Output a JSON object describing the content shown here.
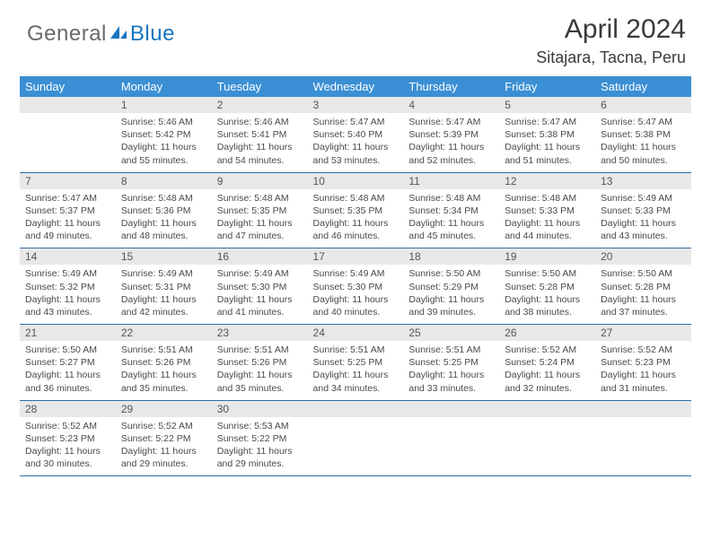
{
  "logo": {
    "text1": "General",
    "text2": "Blue",
    "icon_color": "#1976c1",
    "text1_color": "#6a6a6a"
  },
  "header": {
    "title": "April 2024",
    "location": "Sitajara, Tacna, Peru"
  },
  "colors": {
    "header_bg": "#3b8fd4",
    "header_text": "#ffffff",
    "daynum_bg": "#e8e8e8",
    "cell_border": "#2f6fa8",
    "body_text": "#4a4a4a"
  },
  "weekdays": [
    "Sunday",
    "Monday",
    "Tuesday",
    "Wednesday",
    "Thursday",
    "Friday",
    "Saturday"
  ],
  "weeks": [
    [
      null,
      {
        "n": "1",
        "sr": "5:46 AM",
        "ss": "5:42 PM",
        "dl": "11 hours and 55 minutes."
      },
      {
        "n": "2",
        "sr": "5:46 AM",
        "ss": "5:41 PM",
        "dl": "11 hours and 54 minutes."
      },
      {
        "n": "3",
        "sr": "5:47 AM",
        "ss": "5:40 PM",
        "dl": "11 hours and 53 minutes."
      },
      {
        "n": "4",
        "sr": "5:47 AM",
        "ss": "5:39 PM",
        "dl": "11 hours and 52 minutes."
      },
      {
        "n": "5",
        "sr": "5:47 AM",
        "ss": "5:38 PM",
        "dl": "11 hours and 51 minutes."
      },
      {
        "n": "6",
        "sr": "5:47 AM",
        "ss": "5:38 PM",
        "dl": "11 hours and 50 minutes."
      }
    ],
    [
      {
        "n": "7",
        "sr": "5:47 AM",
        "ss": "5:37 PM",
        "dl": "11 hours and 49 minutes."
      },
      {
        "n": "8",
        "sr": "5:48 AM",
        "ss": "5:36 PM",
        "dl": "11 hours and 48 minutes."
      },
      {
        "n": "9",
        "sr": "5:48 AM",
        "ss": "5:35 PM",
        "dl": "11 hours and 47 minutes."
      },
      {
        "n": "10",
        "sr": "5:48 AM",
        "ss": "5:35 PM",
        "dl": "11 hours and 46 minutes."
      },
      {
        "n": "11",
        "sr": "5:48 AM",
        "ss": "5:34 PM",
        "dl": "11 hours and 45 minutes."
      },
      {
        "n": "12",
        "sr": "5:48 AM",
        "ss": "5:33 PM",
        "dl": "11 hours and 44 minutes."
      },
      {
        "n": "13",
        "sr": "5:49 AM",
        "ss": "5:33 PM",
        "dl": "11 hours and 43 minutes."
      }
    ],
    [
      {
        "n": "14",
        "sr": "5:49 AM",
        "ss": "5:32 PM",
        "dl": "11 hours and 43 minutes."
      },
      {
        "n": "15",
        "sr": "5:49 AM",
        "ss": "5:31 PM",
        "dl": "11 hours and 42 minutes."
      },
      {
        "n": "16",
        "sr": "5:49 AM",
        "ss": "5:30 PM",
        "dl": "11 hours and 41 minutes."
      },
      {
        "n": "17",
        "sr": "5:49 AM",
        "ss": "5:30 PM",
        "dl": "11 hours and 40 minutes."
      },
      {
        "n": "18",
        "sr": "5:50 AM",
        "ss": "5:29 PM",
        "dl": "11 hours and 39 minutes."
      },
      {
        "n": "19",
        "sr": "5:50 AM",
        "ss": "5:28 PM",
        "dl": "11 hours and 38 minutes."
      },
      {
        "n": "20",
        "sr": "5:50 AM",
        "ss": "5:28 PM",
        "dl": "11 hours and 37 minutes."
      }
    ],
    [
      {
        "n": "21",
        "sr": "5:50 AM",
        "ss": "5:27 PM",
        "dl": "11 hours and 36 minutes."
      },
      {
        "n": "22",
        "sr": "5:51 AM",
        "ss": "5:26 PM",
        "dl": "11 hours and 35 minutes."
      },
      {
        "n": "23",
        "sr": "5:51 AM",
        "ss": "5:26 PM",
        "dl": "11 hours and 35 minutes."
      },
      {
        "n": "24",
        "sr": "5:51 AM",
        "ss": "5:25 PM",
        "dl": "11 hours and 34 minutes."
      },
      {
        "n": "25",
        "sr": "5:51 AM",
        "ss": "5:25 PM",
        "dl": "11 hours and 33 minutes."
      },
      {
        "n": "26",
        "sr": "5:52 AM",
        "ss": "5:24 PM",
        "dl": "11 hours and 32 minutes."
      },
      {
        "n": "27",
        "sr": "5:52 AM",
        "ss": "5:23 PM",
        "dl": "11 hours and 31 minutes."
      }
    ],
    [
      {
        "n": "28",
        "sr": "5:52 AM",
        "ss": "5:23 PM",
        "dl": "11 hours and 30 minutes."
      },
      {
        "n": "29",
        "sr": "5:52 AM",
        "ss": "5:22 PM",
        "dl": "11 hours and 29 minutes."
      },
      {
        "n": "30",
        "sr": "5:53 AM",
        "ss": "5:22 PM",
        "dl": "11 hours and 29 minutes."
      },
      null,
      null,
      null,
      null
    ]
  ],
  "labels": {
    "sunrise": "Sunrise:",
    "sunset": "Sunset:",
    "daylight": "Daylight:"
  }
}
